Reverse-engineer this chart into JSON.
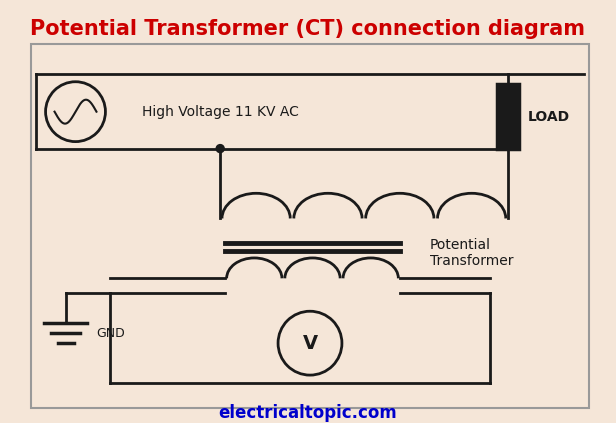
{
  "title": "Potential Transformer (CT) connection diagram",
  "title_color": "#cc0000",
  "title_fontsize": 15,
  "bg_color": "#f5e6d8",
  "line_color": "#1a1a1a",
  "website": "electricaltopic.com",
  "website_color": "#0000cc",
  "website_fontsize": 12,
  "label_hv": "High Voltage 11 KV AC",
  "label_load": "LOAD",
  "label_gnd": "GND",
  "label_pt": "Potential\nTransformer",
  "fig_width": 6.16,
  "fig_height": 4.23,
  "dpi": 100
}
